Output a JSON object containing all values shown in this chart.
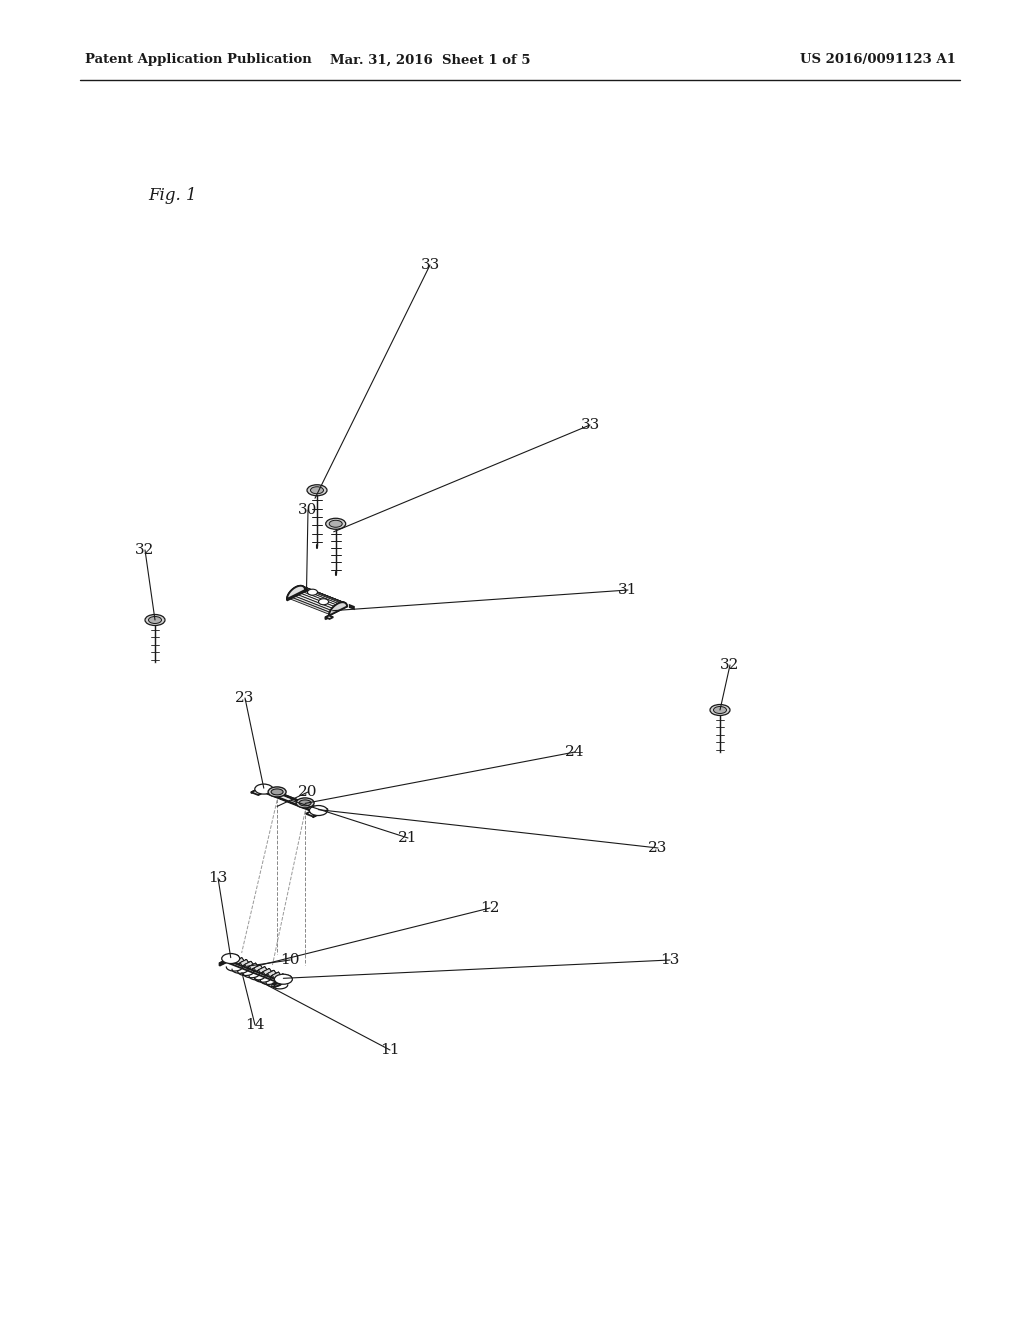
{
  "title_left": "Patent Application Publication",
  "title_mid": "Mar. 31, 2016  Sheet 1 of 5",
  "title_right": "US 2016/0091123 A1",
  "fig_label": "Fig. 1",
  "background": "#ffffff",
  "line_color": "#1a1a1a",
  "gray_light": "#f0f0f0",
  "gray_mid": "#d8d8d8",
  "gray_dark": "#b0b0b0"
}
